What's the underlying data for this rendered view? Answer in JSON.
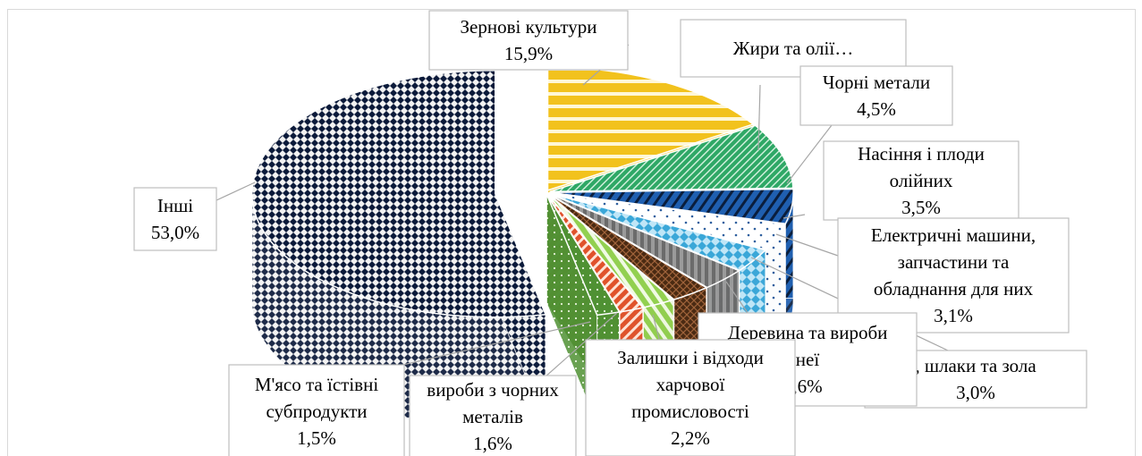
{
  "chart_data": {
    "type": "pie",
    "style": "3d-exploded",
    "legend": "none",
    "categories": [
      "Зернові культури",
      "Жири та олії…",
      "Чорні метали",
      "Насіння і плоди олійних",
      "Електричні машини, запчастини та обладнання для них",
      ", шлаки та зола",
      "Деревина та вироби неї",
      "Залишки і відходи харчової промисловості",
      "вироби з чорних металів",
      "М'ясо та їстівні субпродукти",
      "Інші"
    ],
    "values": [
      15.9,
      8.5,
      4.5,
      3.5,
      3.1,
      3.0,
      2.6,
      2.2,
      1.6,
      1.5,
      53.0
    ],
    "labels": [
      [
        "Зернові культури",
        "15,9%"
      ],
      [
        "Жири та олії…"
      ],
      [
        "Чорні метали",
        "4,5%"
      ],
      [
        "Насіння і плоди",
        "олійних",
        "3,5%"
      ],
      [
        "Електричні машини,",
        "запчастини та",
        "обладнання для них",
        "3,1%"
      ],
      [
        ", шлаки та зола",
        "3,0%"
      ],
      [
        "Деревина та вироби",
        "неї",
        ",6%"
      ],
      [
        "Залишки і відходи",
        "харчової",
        "промисловості",
        "2,2%"
      ],
      [
        "вироби з чорних",
        "металів",
        "1,6%"
      ],
      [
        "М'ясо та їстівні",
        "субпродукти",
        "1,5%"
      ],
      [
        "Інші",
        "53,0%"
      ]
    ],
    "colors": [
      "#f2c21d",
      "#33b06a",
      "#1f5fb0",
      "#ffffff",
      "#4fb8e6",
      "#707070",
      "#5b3416",
      "#92d050",
      "#e0522b",
      "#5a9a3a",
      "#0b1a3a",
      "#222222"
    ]
  }
}
